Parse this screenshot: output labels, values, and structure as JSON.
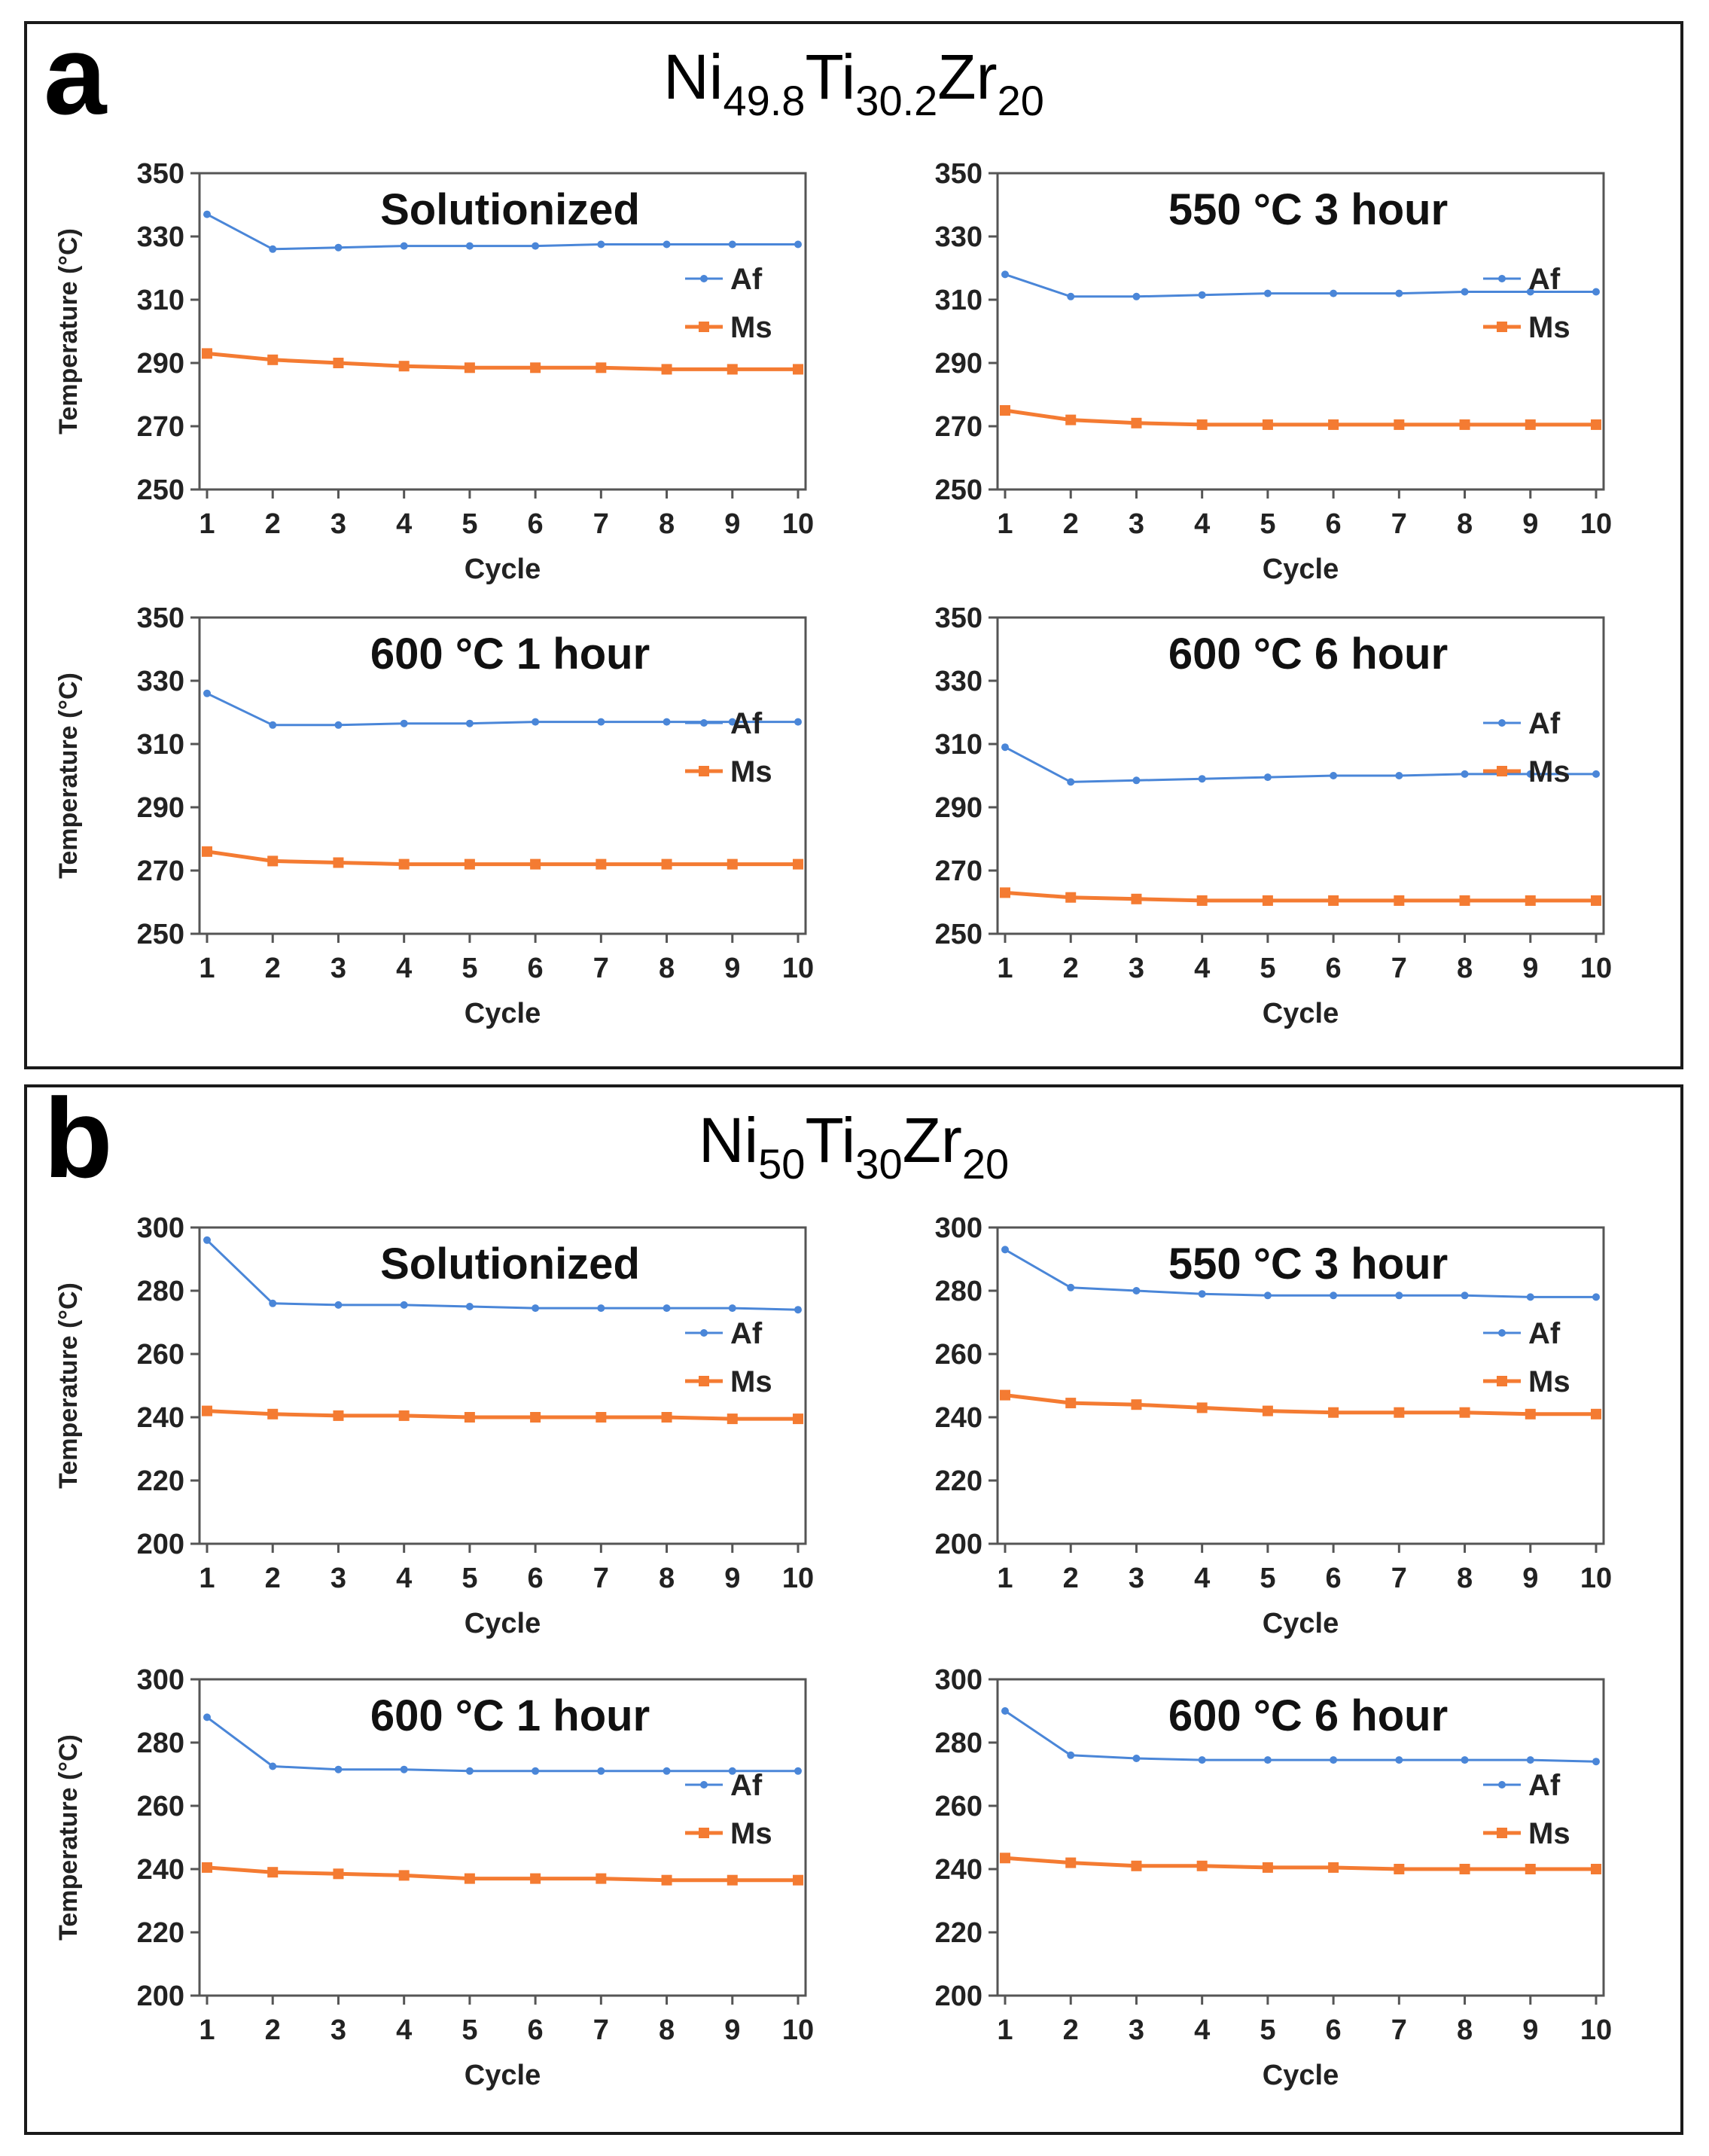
{
  "panels": [
    {
      "letter": "a",
      "title": {
        "ni": "Ni",
        "ni_sub": "49.8",
        "ti": "Ti",
        "ti_sub": "30.2",
        "zr": "Zr",
        "zr_sub": "20"
      }
    },
    {
      "letter": "b",
      "title": {
        "ni": "Ni",
        "ni_sub": "50",
        "ti": "Ti",
        "ti_sub": "30",
        "zr": "Zr",
        "zr_sub": "20"
      }
    }
  ],
  "colors": {
    "af": "#4a86d8",
    "ms": "#f47b32",
    "axis": "#333333"
  },
  "chart_data": [
    {
      "type": "line",
      "panel": "a",
      "title": "Solutionized",
      "xlabel": "Cycle",
      "ylabel": "Temperature (°C)",
      "x": [
        "1",
        "2",
        "3",
        "4",
        "5",
        "6",
        "7",
        "8",
        "9",
        "10"
      ],
      "ylim": [
        250,
        350
      ],
      "yticks": [
        350,
        330,
        310,
        290,
        270,
        250
      ],
      "series": [
        {
          "name": "Af",
          "values": [
            337,
            326,
            326.5,
            327,
            327,
            327,
            327.5,
            327.5,
            327.5,
            327.5
          ]
        },
        {
          "name": "Ms",
          "values": [
            293,
            291,
            290,
            289,
            288.5,
            288.5,
            288.5,
            288,
            288,
            288
          ]
        }
      ]
    },
    {
      "type": "line",
      "panel": "a",
      "title": "550 °C 3 hour",
      "xlabel": "Cycle",
      "ylabel": "",
      "x": [
        "1",
        "2",
        "3",
        "4",
        "5",
        "6",
        "7",
        "8",
        "9",
        "10"
      ],
      "ylim": [
        250,
        350
      ],
      "yticks": [
        350,
        330,
        310,
        290,
        270,
        250
      ],
      "series": [
        {
          "name": "Af",
          "values": [
            318,
            311,
            311,
            311.5,
            312,
            312,
            312,
            312.5,
            312.5,
            312.5
          ]
        },
        {
          "name": "Ms",
          "values": [
            275,
            272,
            271,
            270.5,
            270.5,
            270.5,
            270.5,
            270.5,
            270.5,
            270.5
          ]
        }
      ]
    },
    {
      "type": "line",
      "panel": "a",
      "title": "600 °C 1 hour",
      "xlabel": "Cycle",
      "ylabel": "Temperature (°C)",
      "x": [
        "1",
        "2",
        "3",
        "4",
        "5",
        "6",
        "7",
        "8",
        "9",
        "10"
      ],
      "ylim": [
        250,
        350
      ],
      "yticks": [
        350,
        330,
        310,
        290,
        270,
        250
      ],
      "series": [
        {
          "name": "Af",
          "values": [
            326,
            316,
            316,
            316.5,
            316.5,
            317,
            317,
            317,
            317,
            317
          ]
        },
        {
          "name": "Ms",
          "values": [
            276,
            273,
            272.5,
            272,
            272,
            272,
            272,
            272,
            272,
            272
          ]
        }
      ]
    },
    {
      "type": "line",
      "panel": "a",
      "title": "600 °C 6 hour",
      "xlabel": "Cycle",
      "ylabel": "",
      "x": [
        "1",
        "2",
        "3",
        "4",
        "5",
        "6",
        "7",
        "8",
        "9",
        "10"
      ],
      "ylim": [
        250,
        350
      ],
      "yticks": [
        350,
        330,
        310,
        290,
        270,
        250
      ],
      "series": [
        {
          "name": "Af",
          "values": [
            309,
            298,
            298.5,
            299,
            299.5,
            300,
            300,
            300.5,
            300.5,
            300.5
          ]
        },
        {
          "name": "Ms",
          "values": [
            263,
            261.5,
            261,
            260.5,
            260.5,
            260.5,
            260.5,
            260.5,
            260.5,
            260.5
          ]
        }
      ]
    },
    {
      "type": "line",
      "panel": "b",
      "title": "Solutionized",
      "xlabel": "Cycle",
      "ylabel": "Temperature (°C)",
      "x": [
        "1",
        "2",
        "3",
        "4",
        "5",
        "6",
        "7",
        "8",
        "9",
        "10"
      ],
      "ylim": [
        200,
        300
      ],
      "yticks": [
        300,
        280,
        260,
        240,
        220,
        200
      ],
      "series": [
        {
          "name": "Af",
          "values": [
            296,
            276,
            275.5,
            275.5,
            275,
            274.5,
            274.5,
            274.5,
            274.5,
            274
          ]
        },
        {
          "name": "Ms",
          "values": [
            242,
            241,
            240.5,
            240.5,
            240,
            240,
            240,
            240,
            239.5,
            239.5
          ]
        }
      ]
    },
    {
      "type": "line",
      "panel": "b",
      "title": "550 °C 3 hour",
      "xlabel": "Cycle",
      "ylabel": "",
      "x": [
        "1",
        "2",
        "3",
        "4",
        "5",
        "6",
        "7",
        "8",
        "9",
        "10"
      ],
      "ylim": [
        200,
        300
      ],
      "yticks": [
        300,
        280,
        260,
        240,
        220,
        200
      ],
      "series": [
        {
          "name": "Af",
          "values": [
            293,
            281,
            280,
            279,
            278.5,
            278.5,
            278.5,
            278.5,
            278,
            278
          ]
        },
        {
          "name": "Ms",
          "values": [
            247,
            244.5,
            244,
            243,
            242,
            241.5,
            241.5,
            241.5,
            241,
            241
          ]
        }
      ]
    },
    {
      "type": "line",
      "panel": "b",
      "title": "600 °C 1 hour",
      "xlabel": "Cycle",
      "ylabel": "Temperature (°C)",
      "x": [
        "1",
        "2",
        "3",
        "4",
        "5",
        "6",
        "7",
        "8",
        "9",
        "10"
      ],
      "ylim": [
        200,
        300
      ],
      "yticks": [
        300,
        280,
        260,
        240,
        220,
        200
      ],
      "series": [
        {
          "name": "Af",
          "values": [
            288,
            272.5,
            271.5,
            271.5,
            271,
            271,
            271,
            271,
            271,
            271
          ]
        },
        {
          "name": "Ms",
          "values": [
            240.5,
            239,
            238.5,
            238,
            237,
            237,
            237,
            236.5,
            236.5,
            236.5
          ]
        }
      ]
    },
    {
      "type": "line",
      "panel": "b",
      "title": "600 °C 6 hour",
      "xlabel": "Cycle",
      "ylabel": "",
      "x": [
        "1",
        "2",
        "3",
        "4",
        "5",
        "6",
        "7",
        "8",
        "9",
        "10"
      ],
      "ylim": [
        200,
        300
      ],
      "yticks": [
        300,
        280,
        260,
        240,
        220,
        200
      ],
      "series": [
        {
          "name": "Af",
          "values": [
            290,
            276,
            275,
            274.5,
            274.5,
            274.5,
            274.5,
            274.5,
            274.5,
            274
          ]
        },
        {
          "name": "Ms",
          "values": [
            243.5,
            242,
            241,
            241,
            240.5,
            240.5,
            240,
            240,
            240,
            240
          ]
        }
      ]
    }
  ]
}
